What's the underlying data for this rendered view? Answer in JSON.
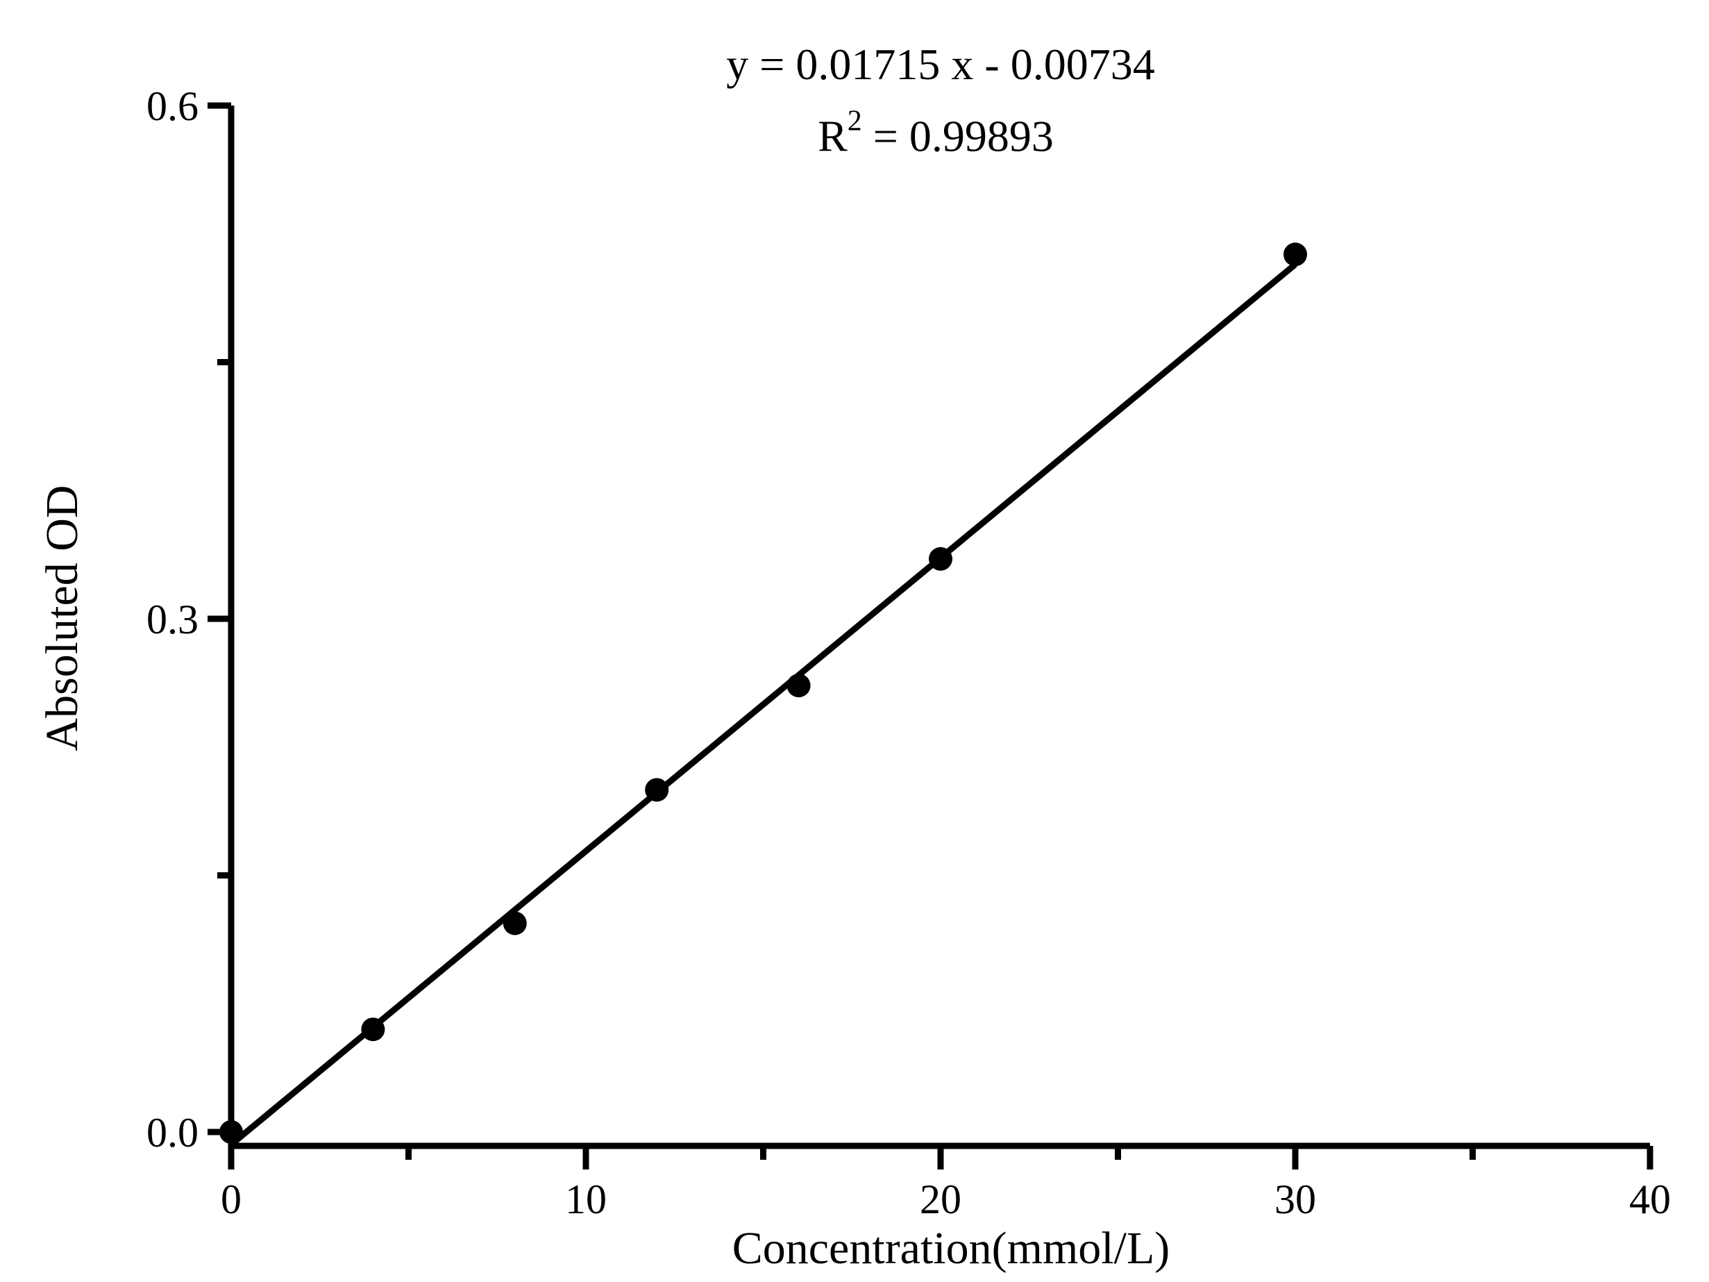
{
  "title": {
    "equation": "y = 0.01715 x - 0.00734",
    "r_base": "R",
    "r_sup": "2",
    "r_rest": " = 0.99893"
  },
  "chart_data": {
    "type": "scatter",
    "title": "y = 0.01715 x - 0.00734",
    "subtitle": "R² = 0.99893",
    "xlabel": "Concentration(mmol/L)",
    "ylabel": "Absoluted OD",
    "xlim": [
      0,
      40
    ],
    "ylim": [
      0,
      0.6
    ],
    "x_major_ticks": [
      0,
      10,
      20,
      30,
      40
    ],
    "x_major_tick_labels": [
      "0",
      "10",
      "20",
      "30",
      "40"
    ],
    "x_minor_ticks": [
      5,
      15,
      25,
      35
    ],
    "y_major_ticks": [
      0.0,
      0.3,
      0.6
    ],
    "y_major_tick_labels": [
      "0.0",
      "0.3",
      "0.6"
    ],
    "y_minor_ticks": [
      0.15,
      0.45
    ],
    "points": {
      "x": [
        0,
        4,
        8,
        12,
        16,
        20,
        30
      ],
      "y": [
        0.0,
        0.06,
        0.122,
        0.2,
        0.261,
        0.335,
        0.513
      ]
    },
    "fit_line": {
      "slope": 0.01715,
      "intercept": -0.00734,
      "x_start": 0,
      "x_end": 30
    },
    "grid": false,
    "legend": null,
    "colors": {
      "points": "#000000",
      "line": "#000000",
      "axis": "#000000",
      "background": "#ffffff"
    }
  }
}
